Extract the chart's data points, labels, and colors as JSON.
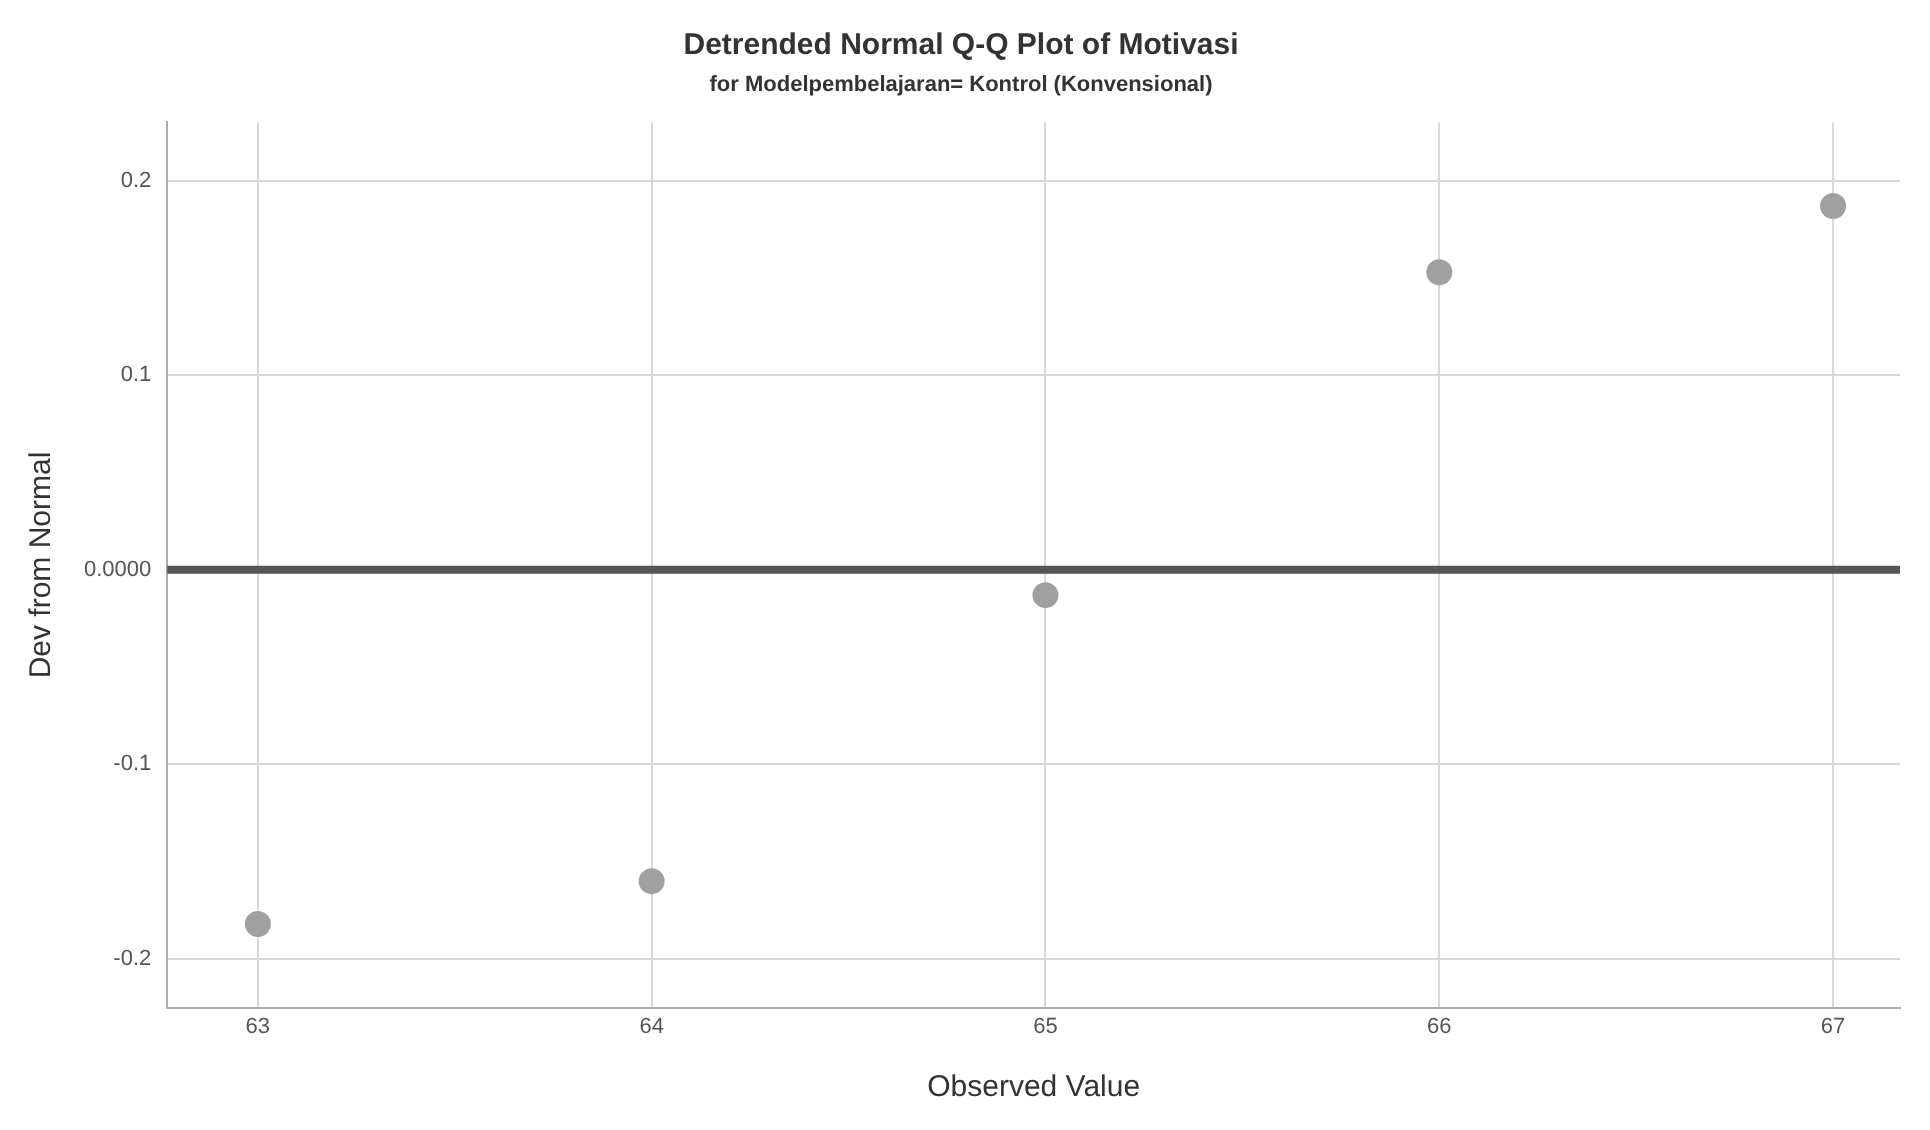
{
  "chart_data": {
    "type": "scatter",
    "title": "Detrended Normal Q-Q Plot of Motivasi",
    "subtitle": "for Modelpembelajaran= Kontrol (Konvensional)",
    "xlabel": "Observed Value",
    "ylabel": "Dev from Normal",
    "x": [
      63,
      64,
      65,
      66,
      67
    ],
    "series": [
      {
        "color": "#a0a0a0",
        "values": [
          -0.182,
          -0.16,
          -0.013,
          0.153,
          0.187
        ]
      }
    ],
    "xlim": [
      62.77,
      67.17
    ],
    "ylim": [
      -0.225,
      0.23
    ],
    "xticks": [
      63,
      64,
      65,
      66,
      67
    ],
    "yticks": [
      {
        "value": -0.2,
        "label": "-0.2"
      },
      {
        "value": -0.1,
        "label": "-0.1"
      },
      {
        "value": 0,
        "label": "0.0000"
      },
      {
        "value": 0.1,
        "label": "0.1"
      },
      {
        "value": 0.2,
        "label": "0.2"
      }
    ],
    "ref_lines": [
      {
        "axis": "y",
        "value": 0,
        "color": "#555555"
      }
    ],
    "grid": true,
    "marker": "circle",
    "legend": false
  }
}
